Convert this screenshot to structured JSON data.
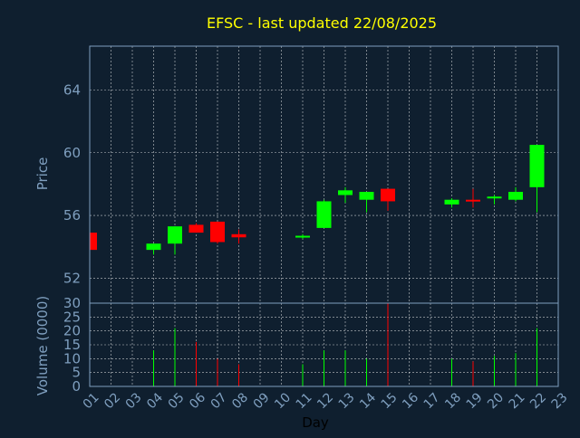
{
  "chart_data": {
    "type": "candlestick",
    "title": "EFSC - last updated 22/08/2025",
    "xlabel": "Day",
    "price_axis": {
      "label": "Price",
      "ylim": [
        50.4,
        66.8
      ],
      "ticks": [
        52,
        56,
        60,
        64
      ],
      "grid": true
    },
    "volume_axis": {
      "label": "Volume (0000)",
      "ylim": [
        0,
        30
      ],
      "ticks": [
        0,
        5,
        10,
        15,
        20,
        25,
        30
      ],
      "grid": true
    },
    "x_ticks": [
      "01",
      "02",
      "03",
      "04",
      "05",
      "06",
      "07",
      "08",
      "09",
      "10",
      "11",
      "12",
      "13",
      "14",
      "15",
      "16",
      "17",
      "18",
      "19",
      "20",
      "21",
      "22",
      "23"
    ],
    "xlim": [
      1,
      23
    ],
    "colors": {
      "up": "#00ff00",
      "down": "#ff0000",
      "background": "#0f1f2f",
      "title": "#ffff00",
      "axis_text": "#7f9fbf",
      "frame": "#7f9fbf",
      "grid": "#ffffff"
    },
    "candles": [
      {
        "day": 1,
        "open": 54.9,
        "high": 54.9,
        "low": 53.8,
        "close": 53.8
      },
      {
        "day": 4,
        "open": 53.8,
        "high": 54.2,
        "low": 53.5,
        "close": 54.2
      },
      {
        "day": 5,
        "open": 54.2,
        "high": 55.3,
        "low": 53.5,
        "close": 55.3
      },
      {
        "day": 6,
        "open": 55.4,
        "high": 55.5,
        "low": 54.9,
        "close": 54.9
      },
      {
        "day": 7,
        "open": 55.6,
        "high": 55.6,
        "low": 54.2,
        "close": 54.3
      },
      {
        "day": 8,
        "open": 54.8,
        "high": 55.1,
        "low": 54.2,
        "close": 54.6
      },
      {
        "day": 11,
        "open": 54.6,
        "high": 54.8,
        "low": 54.5,
        "close": 54.7
      },
      {
        "day": 12,
        "open": 55.2,
        "high": 57.0,
        "low": 55.2,
        "close": 56.9
      },
      {
        "day": 13,
        "open": 57.3,
        "high": 57.8,
        "low": 56.8,
        "close": 57.6
      },
      {
        "day": 14,
        "open": 57.0,
        "high": 57.5,
        "low": 56.2,
        "close": 57.5
      },
      {
        "day": 15,
        "open": 57.7,
        "high": 57.7,
        "low": 56.3,
        "close": 56.9
      },
      {
        "day": 18,
        "open": 56.7,
        "high": 57.1,
        "low": 56.5,
        "close": 57.0
      },
      {
        "day": 19,
        "open": 57.0,
        "high": 57.7,
        "low": 56.5,
        "close": 56.9
      },
      {
        "day": 20,
        "open": 57.1,
        "high": 57.3,
        "low": 56.7,
        "close": 57.2
      },
      {
        "day": 21,
        "open": 57.0,
        "high": 57.8,
        "low": 56.9,
        "close": 57.5
      },
      {
        "day": 22,
        "open": 57.8,
        "high": 60.5,
        "low": 56.2,
        "close": 60.5
      }
    ],
    "volume": [
      {
        "day": 1,
        "value": 0,
        "direction": "up"
      },
      {
        "day": 4,
        "value": 13,
        "direction": "up"
      },
      {
        "day": 5,
        "value": 21,
        "direction": "up"
      },
      {
        "day": 6,
        "value": 16,
        "direction": "down"
      },
      {
        "day": 7,
        "value": 10,
        "direction": "down"
      },
      {
        "day": 8,
        "value": 8,
        "direction": "down"
      },
      {
        "day": 11,
        "value": 8,
        "direction": "up"
      },
      {
        "day": 12,
        "value": 13,
        "direction": "up"
      },
      {
        "day": 13,
        "value": 13,
        "direction": "up"
      },
      {
        "day": 14,
        "value": 10,
        "direction": "up"
      },
      {
        "day": 15,
        "value": 30,
        "direction": "down"
      },
      {
        "day": 18,
        "value": 10,
        "direction": "up"
      },
      {
        "day": 19,
        "value": 9,
        "direction": "down"
      },
      {
        "day": 20,
        "value": 11,
        "direction": "up"
      },
      {
        "day": 21,
        "value": 12,
        "direction": "up"
      },
      {
        "day": 22,
        "value": 21,
        "direction": "up"
      }
    ]
  }
}
